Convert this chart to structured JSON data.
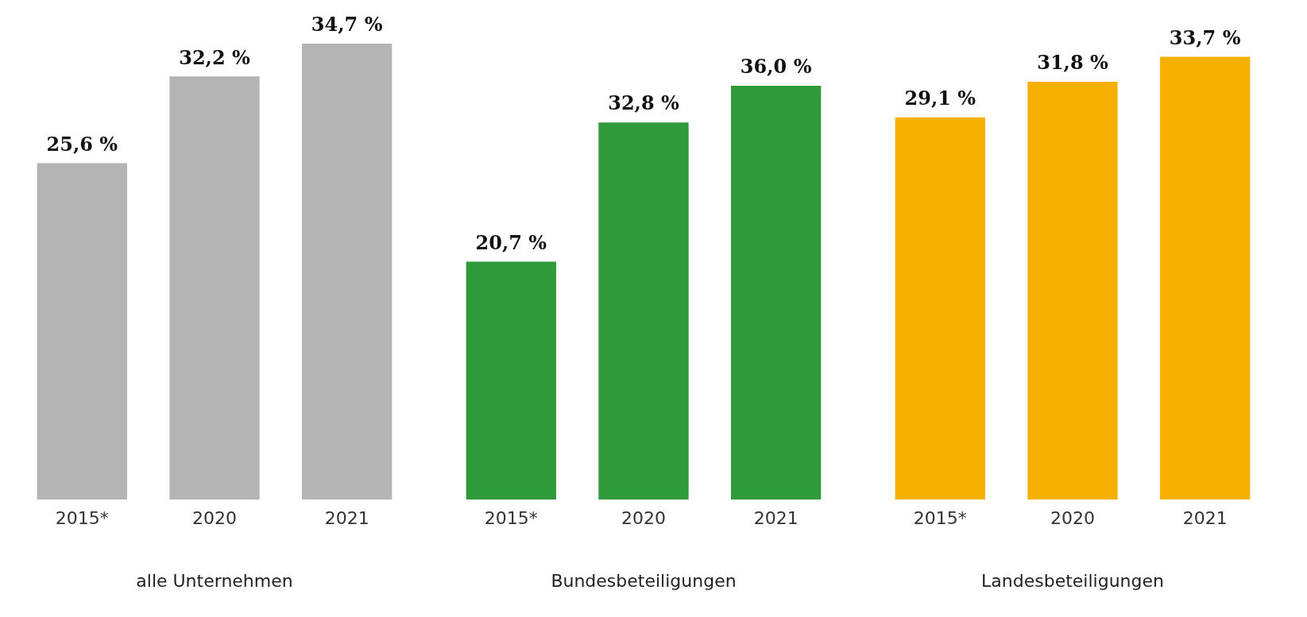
{
  "chart_data": [
    {
      "type": "bar",
      "xlabel": "alle Unternehmen",
      "categories": [
        "2015*",
        "2020",
        "2021"
      ],
      "values": [
        25.6,
        32.2,
        34.7
      ],
      "value_labels": [
        "25,6 %",
        "32,2 %",
        "34,7 %"
      ],
      "color": "#b4b4b4",
      "grid": false,
      "legend": false
    },
    {
      "type": "bar",
      "xlabel": "Bundesbeteiligungen",
      "categories": [
        "2015*",
        "2020",
        "2021"
      ],
      "values": [
        20.7,
        32.8,
        36.0
      ],
      "value_labels": [
        "20,7 %",
        "32,8 %",
        "36,0 %"
      ],
      "color": "#2e9a3a",
      "grid": false,
      "legend": false
    },
    {
      "type": "bar",
      "xlabel": "Landesbeteiligungen",
      "categories": [
        "2015*",
        "2020",
        "2021"
      ],
      "values": [
        29.1,
        31.8,
        33.7
      ],
      "value_labels": [
        "29,1 %",
        "31,8 %",
        "33,7 %"
      ],
      "color": "#f5b000",
      "grid": false,
      "legend": false
    }
  ]
}
